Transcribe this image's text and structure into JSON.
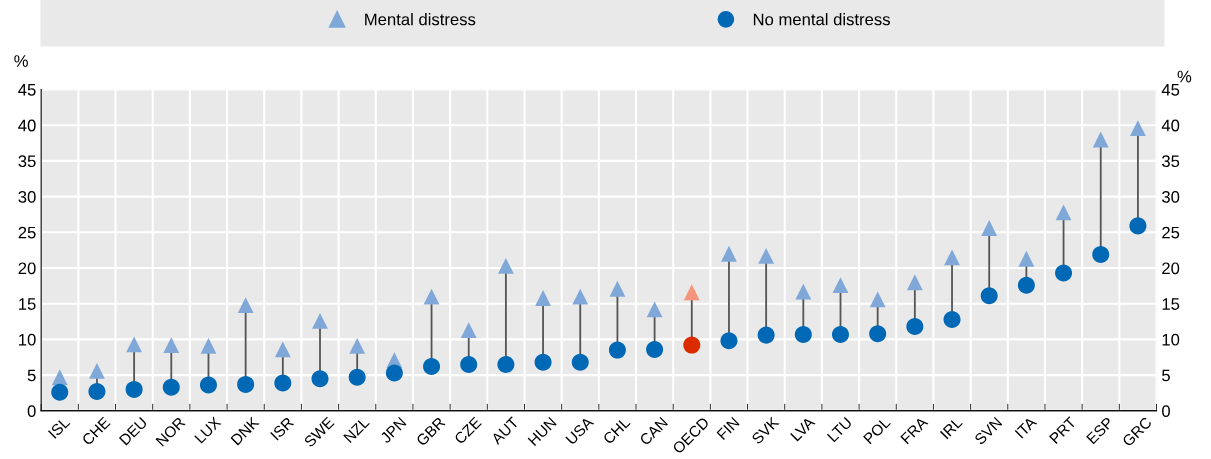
{
  "chart_data": {
    "type": "scatter",
    "ylabel": "%",
    "y2label": "%",
    "categories": [
      "ISL",
      "CHE",
      "DEU",
      "NOR",
      "LUX",
      "DNK",
      "ISR",
      "SWE",
      "NZL",
      "JPN",
      "GBR",
      "CZE",
      "AUT",
      "HUN",
      "USA",
      "CHL",
      "CAN",
      "OECD",
      "FIN",
      "SVK",
      "LVA",
      "LTU",
      "POL",
      "FRA",
      "IRL",
      "SVN",
      "ITA",
      "PRT",
      "ESP",
      "GRC"
    ],
    "series": [
      {
        "name": "Mental distress",
        "color": "#7fa8d9",
        "marker": "triangle",
        "values": [
          4.7,
          5.6,
          9.3,
          9.2,
          9.1,
          14.8,
          8.6,
          12.6,
          9.1,
          7.1,
          16.0,
          11.3,
          20.3,
          15.8,
          16.0,
          17.1,
          14.2,
          16.6,
          22.0,
          21.7,
          16.7,
          17.6,
          15.6,
          18.0,
          21.5,
          25.6,
          21.3,
          27.8,
          38.0,
          39.6
        ],
        "colors": [
          "#7fa8d9",
          "#7fa8d9",
          "#7fa8d9",
          "#7fa8d9",
          "#7fa8d9",
          "#7fa8d9",
          "#7fa8d9",
          "#7fa8d9",
          "#7fa8d9",
          "#7fa8d9",
          "#7fa8d9",
          "#7fa8d9",
          "#7fa8d9",
          "#7fa8d9",
          "#7fa8d9",
          "#7fa8d9",
          "#7fa8d9",
          "#f4947a",
          "#7fa8d9",
          "#7fa8d9",
          "#7fa8d9",
          "#7fa8d9",
          "#7fa8d9",
          "#7fa8d9",
          "#7fa8d9",
          "#7fa8d9",
          "#7fa8d9",
          "#7fa8d9",
          "#7fa8d9",
          "#7fa8d9"
        ]
      },
      {
        "name": "No mental distress",
        "color": "#0068b4",
        "marker": "circle",
        "values": [
          2.6,
          2.7,
          3.0,
          3.3,
          3.6,
          3.7,
          3.9,
          4.5,
          4.7,
          5.3,
          6.2,
          6.5,
          6.5,
          6.8,
          6.8,
          8.5,
          8.6,
          9.2,
          9.8,
          10.6,
          10.7,
          10.7,
          10.8,
          11.8,
          12.8,
          16.1,
          17.6,
          19.3,
          21.9,
          25.9
        ],
        "colors": [
          "#0068b4",
          "#0068b4",
          "#0068b4",
          "#0068b4",
          "#0068b4",
          "#0068b4",
          "#0068b4",
          "#0068b4",
          "#0068b4",
          "#0068b4",
          "#0068b4",
          "#0068b4",
          "#0068b4",
          "#0068b4",
          "#0068b4",
          "#0068b4",
          "#0068b4",
          "#db2c00",
          "#0068b4",
          "#0068b4",
          "#0068b4",
          "#0068b4",
          "#0068b4",
          "#0068b4",
          "#0068b4",
          "#0068b4",
          "#0068b4",
          "#0068b4",
          "#0068b4",
          "#0068b4"
        ]
      }
    ],
    "line_style": "solid",
    "ylim": [
      0,
      45
    ],
    "yticks": [
      0,
      5,
      10,
      15,
      20,
      25,
      30,
      35,
      40,
      45
    ],
    "y2lim": [
      0,
      45
    ],
    "y2ticks": [
      0,
      5,
      10,
      15,
      20,
      25,
      30,
      35,
      40,
      45
    ],
    "grid": true,
    "legend": "top"
  }
}
